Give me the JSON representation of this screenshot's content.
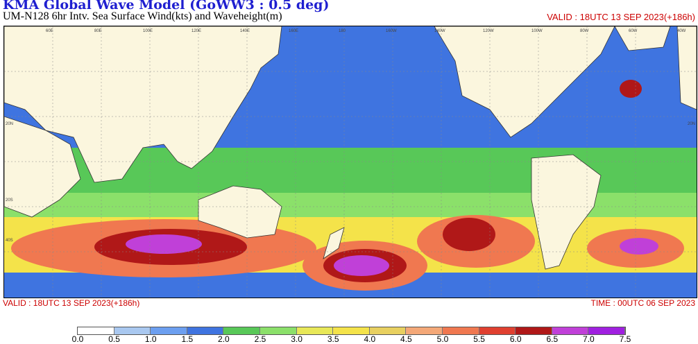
{
  "header": {
    "title": "KMA  Global Wave Model (GoWW3 : 0.5 deg)",
    "subtitle": "UM-N128  6hr Intv. Sea Surface Wind(kts) and Waveheight(m)",
    "valid_top_right": "VALID : 18UTC 13 SEP 2023(+186h)"
  },
  "footer": {
    "valid_bottom_left": "VALID : 18UTC 13 SEP 2023(+186h)",
    "time_bottom_right": "TIME : 00UTC 06 SEP 2023"
  },
  "legend": {
    "unit": "m",
    "ticks": [
      "0.0",
      "0.5",
      "1.0",
      "1.5",
      "2.0",
      "2.5",
      "3.0",
      "3.5",
      "4.0",
      "4.5",
      "5.0",
      "5.5",
      "6.0",
      "6.5",
      "7.0",
      "7.5"
    ],
    "colors": [
      "#ffffff",
      "#a9c8f0",
      "#6c9ff0",
      "#3f74e0",
      "#58c858",
      "#8be06a",
      "#e8e858",
      "#f4e34a",
      "#e8d060",
      "#f4a878",
      "#f07850",
      "#e04030",
      "#b01818",
      "#c040d8",
      "#a020e0"
    ]
  },
  "map": {
    "lat_labels": [
      "20N",
      "20N",
      "20S",
      "40S"
    ],
    "lon_labels": [
      "60E",
      "80E",
      "100E",
      "120E",
      "140E",
      "160E",
      "180",
      "160W",
      "140W",
      "120W",
      "100W",
      "80W",
      "60W",
      "40W"
    ]
  }
}
